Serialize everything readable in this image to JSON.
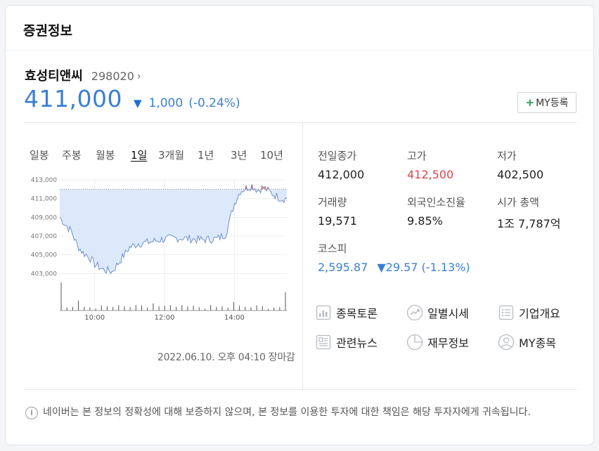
{
  "header": {
    "title": "증권정보"
  },
  "stock": {
    "name": "효성티앤씨",
    "code": "298020",
    "price": "411,000",
    "change": "1,000",
    "change_pct": "(-0.24%)",
    "my_button": "MY등록"
  },
  "period_tabs": [
    "일봉",
    "주봉",
    "월봉",
    "1일",
    "3개월",
    "1년",
    "3년",
    "10년"
  ],
  "active_period": "1일",
  "chart_data": {
    "type": "line",
    "y_ticks": [
      "413,000",
      "411,000",
      "409,000",
      "407,000",
      "405,000",
      "403,000"
    ],
    "x_ticks": [
      "10:00",
      "12:00",
      "14:00"
    ],
    "ylim": [
      402500,
      413000
    ],
    "prev_close": 412000,
    "x": [
      "09:00",
      "09:10",
      "09:20",
      "09:30",
      "09:40",
      "09:50",
      "10:00",
      "10:15",
      "10:30",
      "10:45",
      "11:00",
      "11:15",
      "11:30",
      "12:00",
      "12:30",
      "13:00",
      "13:30",
      "13:45",
      "14:00",
      "14:10",
      "14:20",
      "14:30",
      "14:40",
      "14:50",
      "15:00",
      "15:20",
      "15:30"
    ],
    "values": [
      409000,
      408200,
      407500,
      406000,
      405200,
      404800,
      404000,
      403400,
      403200,
      404500,
      405800,
      406200,
      406300,
      406700,
      406800,
      406600,
      406700,
      407200,
      410500,
      411800,
      412100,
      412400,
      411900,
      412200,
      411700,
      411000,
      411000
    ],
    "volume_bars": 40
  },
  "chart_timestamp": "2022.06.10. 오후 04:10 장마감",
  "info": {
    "prev_close_label": "전일종가",
    "prev_close": "412,000",
    "high_label": "고가",
    "high": "412,500",
    "low_label": "저가",
    "low": "402,500",
    "volume_label": "거래량",
    "volume": "19,571",
    "foreign_label": "외국인소진율",
    "foreign": "9.85%",
    "mcap_label": "시가 총액",
    "mcap": "1조 7,787억",
    "kospi_label": "코스피",
    "kospi": "2,595.87",
    "kospi_change": "▼29.57",
    "kospi_pct": "(-1.13%)"
  },
  "links": {
    "discussion": "종목토론",
    "daily": "일별시세",
    "company": "기업개요",
    "news": "관련뉴스",
    "finance": "재무정보",
    "my_stocks": "MY종목"
  },
  "notice": "네이버는 본 정보의 정확성에 대해 보증하지 않으며, 본 정보를 이용한 투자에 대한 책임은 해당 투자자에게 귀속됩니다.",
  "colors": {
    "price_blue": "#3a7fd6",
    "up_red": "#e0444b",
    "chart_fill": "#dce9fb",
    "chart_line": "#6f8fc8"
  }
}
